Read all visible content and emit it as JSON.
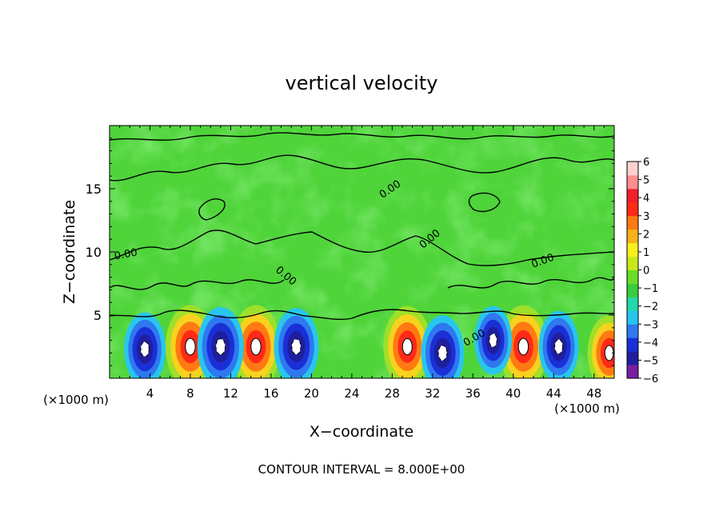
{
  "chart_data": {
    "type": "heatmap",
    "title": "vertical velocity",
    "xlabel": "X−coordinate",
    "ylabel": "Z−coordinate",
    "x_unit_label": "(×1000 m)",
    "z_unit_label": "(×1000 m)",
    "footer": "CONTOUR INTERVAL = 8.000E+00",
    "xlim": [
      0,
      50
    ],
    "ylim": [
      0,
      20
    ],
    "x_ticks": [
      "4",
      "8",
      "12",
      "16",
      "20",
      "24",
      "28",
      "32",
      "36",
      "40",
      "44",
      "48"
    ],
    "y_ticks": [
      "5",
      "10",
      "15"
    ],
    "colorbar": {
      "min": -6,
      "max": 6,
      "ticks": [
        "6",
        "5",
        "4",
        "3",
        "2",
        "1",
        "0",
        "−1",
        "−2",
        "−3",
        "−4",
        "−5",
        "−6"
      ],
      "colors": [
        "#7a1fa2",
        "#1f1f9e",
        "#1a2fd6",
        "#2f78f0",
        "#28c6ee",
        "#24d8a8",
        "#39cc3e",
        "#6cdc2a",
        "#c8e81c",
        "#f6f01e",
        "#f7b21a",
        "#ff7a12",
        "#ff2a18",
        "#f01f2a",
        "#ff8e8e",
        "#ffd0d0"
      ]
    },
    "contour_labels": [
      "0.00",
      "0.00",
      "0.00",
      "0.00",
      "0.00",
      "0.00"
    ],
    "cells": [
      {
        "x": 8,
        "z": 2.5,
        "w": 3.0
      },
      {
        "x": 14.5,
        "z": 2.5,
        "w": 3.0
      },
      {
        "x": 29.5,
        "z": 2.5,
        "w": 2.8
      },
      {
        "x": 41,
        "z": 2.5,
        "w": 3.0
      },
      {
        "x": 11,
        "z": 2.5,
        "w": -2.6
      },
      {
        "x": 18.5,
        "z": 2.5,
        "w": -2.4
      },
      {
        "x": 3.5,
        "z": 2.3,
        "w": -2.0
      },
      {
        "x": 33,
        "z": 2.0,
        "w": -2.2
      },
      {
        "x": 38,
        "z": 3.0,
        "w": -1.5
      },
      {
        "x": 44.5,
        "z": 2.5,
        "w": -1.8
      },
      {
        "x": 49.5,
        "z": 2.0,
        "w": 2.2
      }
    ]
  }
}
